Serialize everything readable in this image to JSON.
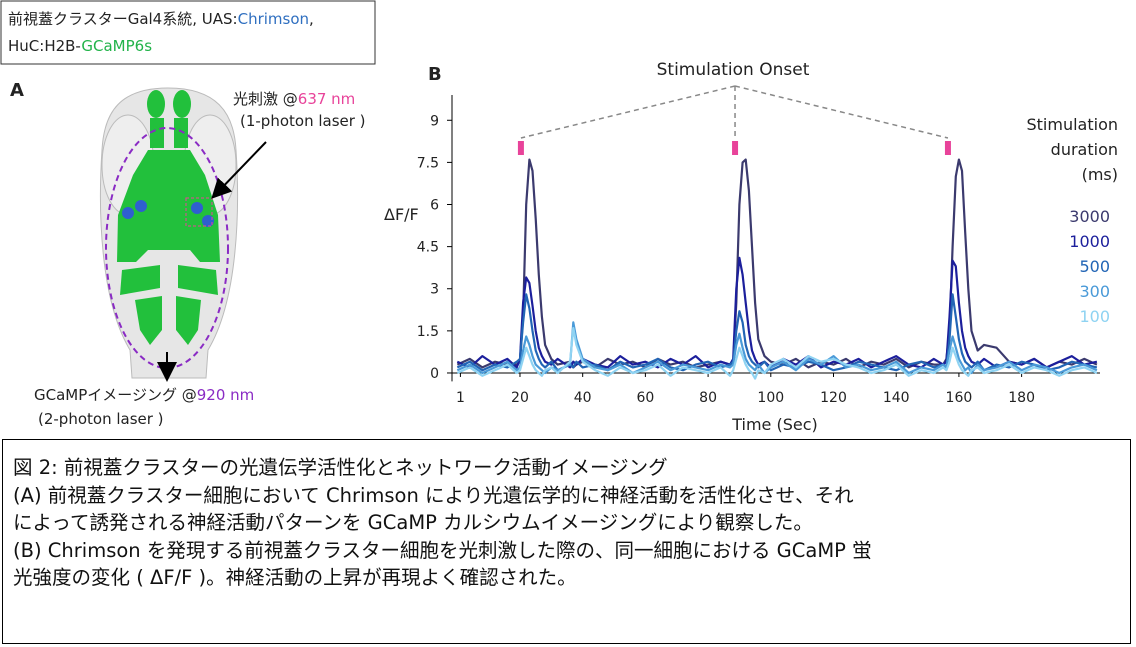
{
  "header": {
    "line1": [
      "前視蓋クラスターGal4系統, UAS:",
      "Chrimson",
      ","
    ],
    "line2": [
      "HuC:H2B-",
      "GCaMP6s"
    ]
  },
  "panel_a": {
    "label": "A",
    "stim_label": [
      "光刺激 @",
      "637 nm"
    ],
    "stim_laser": "(1-photon laser )",
    "imaging_label": [
      "GCaMPイメージング @",
      "920 nm"
    ],
    "imaging_laser": "(2-photon laser )"
  },
  "chart_data": {
    "type": "line",
    "panel_label": "B",
    "annotation": "Stimulation Onset",
    "stimulation_x": [
      20.3,
      88.6,
      156.5
    ],
    "stimulation_color": "#e8439a",
    "x_label": "Time (Sec)",
    "y_label": "ΔF/F",
    "legend_title": [
      "Stimulation",
      "duration",
      "(ms)"
    ],
    "xlim": [
      -2,
      205
    ],
    "ylim": [
      -0.3,
      9.9
    ],
    "xticks": [
      1,
      20,
      40,
      60,
      80,
      100,
      120,
      140,
      160,
      180
    ],
    "yticks": [
      0,
      1.5,
      3,
      4.5,
      6,
      7.5,
      9
    ],
    "x": [
      0,
      4,
      8,
      12,
      16,
      19,
      20,
      21,
      22,
      23,
      24,
      25,
      26,
      27,
      28,
      30,
      32,
      36,
      37,
      38,
      40,
      44,
      48,
      52,
      56,
      60,
      64,
      68,
      72,
      76,
      80,
      84,
      87,
      88,
      89,
      90,
      91,
      92,
      93,
      94,
      95,
      96,
      98,
      100,
      104,
      108,
      112,
      116,
      120,
      124,
      128,
      132,
      136,
      140,
      144,
      148,
      152,
      155,
      156,
      157,
      158,
      159,
      160,
      161,
      162,
      163,
      164,
      166,
      168,
      172,
      176,
      180,
      184,
      188,
      192,
      196,
      200,
      204
    ],
    "series": [
      {
        "name": "3000",
        "color": "#3b3a6e",
        "values": [
          0.3,
          0.5,
          0.2,
          0.4,
          0.3,
          0.3,
          0.4,
          2.0,
          6.0,
          7.6,
          7.2,
          5.5,
          3.5,
          2.0,
          1.0,
          0.5,
          0.3,
          0.4,
          0.2,
          0.3,
          0.4,
          0.2,
          0.5,
          0.3,
          0.4,
          0.2,
          0.5,
          0.3,
          0.4,
          0.2,
          0.3,
          0.4,
          0.3,
          0.4,
          2.5,
          6.0,
          7.5,
          7.6,
          6.5,
          4.5,
          2.5,
          1.2,
          0.6,
          0.4,
          0.3,
          0.5,
          0.2,
          0.4,
          0.3,
          0.5,
          0.2,
          0.4,
          0.3,
          0.5,
          0.2,
          0.4,
          0.3,
          0.3,
          0.5,
          1.5,
          4.5,
          7.0,
          7.6,
          7.2,
          5.0,
          3.0,
          1.5,
          0.8,
          1.0,
          0.9,
          0.4,
          0.3,
          0.5,
          0.2,
          0.4,
          0.3,
          0.5,
          0.3
        ]
      },
      {
        "name": "1000",
        "color": "#1c1f9c",
        "values": [
          0.4,
          0.2,
          0.6,
          0.3,
          0.5,
          0.2,
          0.5,
          2.5,
          3.4,
          3.2,
          2.4,
          1.5,
          0.9,
          0.6,
          0.4,
          0.3,
          0.5,
          0.2,
          0.4,
          0.3,
          0.5,
          0.3,
          0.2,
          0.6,
          0.3,
          0.4,
          0.2,
          0.5,
          0.3,
          0.6,
          0.2,
          0.4,
          0.3,
          0.5,
          3.0,
          4.1,
          3.5,
          2.5,
          1.5,
          0.8,
          0.5,
          0.3,
          0.4,
          0.2,
          0.5,
          0.3,
          0.6,
          0.2,
          0.4,
          0.3,
          0.5,
          0.2,
          0.4,
          0.6,
          0.3,
          0.2,
          0.5,
          0.3,
          0.4,
          2.0,
          4.0,
          3.8,
          2.5,
          1.5,
          0.9,
          0.6,
          0.4,
          0.3,
          0.5,
          0.2,
          0.4,
          0.3,
          0.5,
          0.2,
          0.4,
          0.6,
          0.3,
          0.4
        ]
      },
      {
        "name": "500",
        "color": "#2265b5",
        "values": [
          0.2,
          0.4,
          0.1,
          0.3,
          0.2,
          0.4,
          0.5,
          1.8,
          2.8,
          2.3,
          1.5,
          0.8,
          0.5,
          0.3,
          0.2,
          0.4,
          0.1,
          0.3,
          0.2,
          0.4,
          0.2,
          0.3,
          0.1,
          0.4,
          0.2,
          0.3,
          0.5,
          0.2,
          0.1,
          0.3,
          0.4,
          0.2,
          0.3,
          0.4,
          1.5,
          2.2,
          1.8,
          1.0,
          0.6,
          0.4,
          0.3,
          0.2,
          0.4,
          0.1,
          0.3,
          0.2,
          0.4,
          0.3,
          0.1,
          0.2,
          0.4,
          0.3,
          0.2,
          0.1,
          0.3,
          0.4,
          0.2,
          0.3,
          0.2,
          1.2,
          2.8,
          2.0,
          1.2,
          0.7,
          0.4,
          0.3,
          0.2,
          0.4,
          0.1,
          0.3,
          0.2,
          0.4,
          0.3,
          0.1,
          0.2,
          0.4,
          0.3,
          0.2
        ]
      },
      {
        "name": "300",
        "color": "#4a9ad8",
        "values": [
          0.1,
          0.3,
          0.0,
          0.2,
          0.4,
          0.1,
          0.2,
          0.8,
          1.3,
          1.0,
          0.6,
          0.3,
          0.2,
          0.1,
          0.0,
          0.2,
          0.1,
          0.3,
          1.8,
          1.2,
          0.5,
          0.2,
          0.1,
          0.3,
          0.0,
          0.2,
          0.4,
          0.1,
          0.3,
          0.2,
          0.1,
          0.3,
          0.2,
          0.3,
          1.0,
          1.4,
          0.9,
          0.5,
          0.3,
          0.2,
          0.1,
          0.3,
          0.0,
          0.2,
          0.4,
          0.1,
          0.5,
          0.3,
          0.6,
          0.2,
          0.3,
          0.1,
          0.2,
          0.4,
          0.0,
          0.2,
          0.1,
          0.3,
          0.2,
          0.8,
          1.3,
          0.9,
          0.5,
          0.3,
          0.1,
          0.2,
          0.0,
          0.3,
          0.1,
          0.2,
          0.4,
          0.1,
          0.3,
          0.2,
          0.0,
          0.2,
          0.3,
          0.1
        ]
      },
      {
        "name": "100",
        "color": "#8fd3f2",
        "values": [
          0.0,
          0.2,
          -0.1,
          0.1,
          0.3,
          0.0,
          0.1,
          0.5,
          0.9,
          0.6,
          0.3,
          0.1,
          0.0,
          -0.1,
          0.1,
          0.2,
          0.0,
          0.4,
          1.6,
          1.0,
          0.4,
          0.1,
          -0.1,
          0.2,
          0.0,
          0.1,
          0.3,
          -0.1,
          0.2,
          0.1,
          0.0,
          0.2,
          -0.1,
          0.1,
          0.5,
          0.9,
          0.6,
          0.3,
          0.1,
          0.0,
          -0.2,
          0.1,
          0.0,
          0.3,
          0.5,
          0.2,
          0.6,
          0.4,
          0.5,
          0.3,
          0.2,
          0.0,
          0.1,
          0.3,
          -0.1,
          0.1,
          0.0,
          0.2,
          0.1,
          0.4,
          0.9,
          0.6,
          0.3,
          0.1,
          0.0,
          -0.1,
          0.1,
          0.2,
          0.0,
          0.1,
          0.3,
          0.0,
          0.2,
          0.1,
          -0.1,
          0.1,
          0.2,
          0.0
        ]
      }
    ]
  },
  "caption": {
    "title": "図 2: 前視蓋クラスターの光遺伝学活性化とネットワーク活動イメージング",
    "lines": [
      "(A) 前視蓋クラスター細胞において Chrimson により光遺伝学的に神経活動を活性化させ、それ",
      "によって誘発される神経活動パターンを GCaMP カルシウムイメージングにより観察した。",
      "(B) Chrimson を発現する前視蓋クラスター細胞を光刺激した際の、同一細胞における GCaMP 蛍",
      "光強度の変化 ( ΔF/F )。神経活動の上昇が再現よく確認された。"
    ]
  }
}
